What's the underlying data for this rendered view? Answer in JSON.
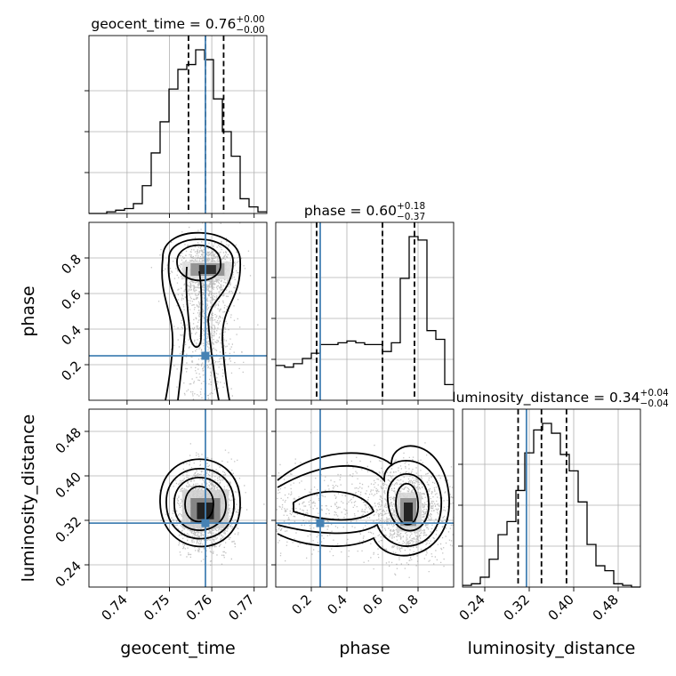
{
  "chart_data": {
    "type": "corner",
    "parameters": [
      "geocent_time",
      "phase",
      "luminosity_distance"
    ],
    "truths": {
      "geocent_time": 0.7585,
      "phase": 0.25,
      "luminosity_distance": 0.315
    },
    "titles": [
      {
        "param": "geocent_time",
        "text": "geocent_time = 0.76",
        "plus": "+0.00",
        "minus": "−0.00"
      },
      {
        "param": "phase",
        "text": "phase = 0.60",
        "plus": "+0.18",
        "minus": "−0.37"
      },
      {
        "param": "luminosity_distance",
        "text": "luminosity_distance = 0.34",
        "plus": "+0.04",
        "minus": "−0.04"
      }
    ],
    "axes": {
      "geocent_time": {
        "label": "geocent_time",
        "range": [
          0.731,
          0.773
        ],
        "ticks": [
          0.74,
          0.75,
          0.76,
          0.77
        ],
        "tick_labels": [
          "0.74",
          "0.75",
          "0.76",
          "0.77"
        ]
      },
      "phase": {
        "label": "phase",
        "range": [
          0.0,
          1.0
        ],
        "ticks": [
          0.2,
          0.4,
          0.6,
          0.8
        ],
        "tick_labels": [
          "0.2",
          "0.4",
          "0.6",
          "0.8"
        ]
      },
      "luminosity_distance": {
        "label": "luminosity_distance",
        "range": [
          0.2,
          0.52
        ],
        "ticks": [
          0.24,
          0.32,
          0.4,
          0.48
        ],
        "tick_labels": [
          "0.24",
          "0.32",
          "0.40",
          "0.48"
        ]
      }
    },
    "histograms": {
      "geocent_time": {
        "edges": [
          0.731,
          0.7331,
          0.7352,
          0.7373,
          0.7394,
          0.7415,
          0.7436,
          0.7457,
          0.7478,
          0.7499,
          0.752,
          0.7541,
          0.7562,
          0.7583,
          0.7604,
          0.7625,
          0.7646,
          0.7667,
          0.7688,
          0.7709,
          0.773
        ],
        "counts": [
          0,
          0,
          1,
          2,
          3,
          6,
          17,
          37,
          56,
          76,
          88,
          91,
          100,
          94,
          70,
          50,
          35,
          9,
          4,
          1
        ],
        "quantiles": [
          0.7545,
          0.7585,
          0.7628
        ]
      },
      "phase": {
        "edges": [
          0.0,
          0.05,
          0.1,
          0.15,
          0.2,
          0.25,
          0.3,
          0.35,
          0.4,
          0.45,
          0.5,
          0.55,
          0.6,
          0.65,
          0.7,
          0.75,
          0.8,
          0.85,
          0.9,
          0.95,
          1.0
        ],
        "counts": [
          20,
          19,
          21,
          24,
          27,
          32,
          32,
          33,
          34,
          33,
          32,
          32,
          28,
          33,
          70,
          94,
          92,
          40,
          35,
          9
        ],
        "quantiles": [
          0.23,
          0.6,
          0.78
        ]
      },
      "luminosity_distance": {
        "edges": [
          0.2,
          0.216,
          0.232,
          0.248,
          0.264,
          0.28,
          0.296,
          0.312,
          0.328,
          0.344,
          0.36,
          0.376,
          0.392,
          0.408,
          0.424,
          0.44,
          0.456,
          0.472,
          0.488,
          0.504,
          0.52
        ],
        "counts": [
          1,
          2,
          6,
          17,
          32,
          40,
          59,
          82,
          96,
          100,
          94,
          81,
          71,
          52,
          26,
          13,
          10,
          2,
          1,
          0
        ],
        "quantiles": [
          0.3,
          0.342,
          0.387
        ]
      }
    },
    "grid": true
  }
}
